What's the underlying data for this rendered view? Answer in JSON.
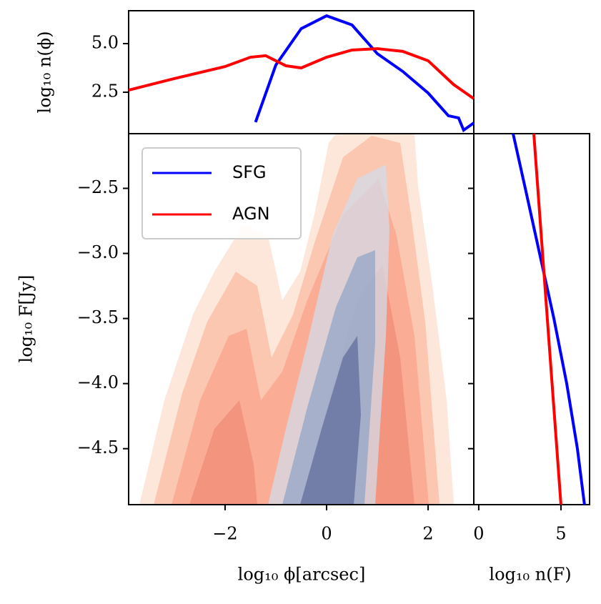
{
  "chart_data": [
    {
      "type": "contour",
      "xlabel": "log₁₀ ϕ[arcsec]",
      "ylabel": "log₁₀ F[Jy]",
      "xlim": [
        -3.9,
        2.9
      ],
      "ylim": [
        -4.93,
        -2.08
      ],
      "xticks": [
        {
          "value": -2,
          "label": "−2"
        },
        0,
        2
      ],
      "yticks": [
        {
          "value": -2.5,
          "label": "−2.5"
        },
        {
          "value": -3.0,
          "label": "−3.0"
        },
        {
          "value": -3.5,
          "label": "−3.5"
        },
        {
          "value": -4.0,
          "label": "−4.0"
        },
        {
          "value": -4.5,
          "label": "−4.5"
        }
      ],
      "legend": "upper left"
    },
    {
      "type": "line",
      "ylabel": "log₁₀ n(ϕ)",
      "xlim": [
        -3.9,
        2.9
      ],
      "ylim": [
        0.37,
        6.69
      ],
      "yticks": [
        2.5,
        {
          "value": 5.0,
          "label": "5.0"
        }
      ],
      "series": [
        {
          "name": "SFG",
          "color": "#0000ff",
          "x": [
            -1.4,
            -1.0,
            -0.5,
            0,
            0.5,
            1.0,
            1.5,
            2.0,
            2.4,
            2.6,
            2.7,
            2.9
          ],
          "values": [
            0.96,
            3.9,
            5.77,
            6.43,
            5.96,
            4.48,
            3.57,
            2.46,
            1.29,
            1.18,
            0.55,
            0.92
          ]
        },
        {
          "name": "AGN",
          "color": "#ff0000",
          "x": [
            -3.9,
            -3.0,
            -2.0,
            -1.5,
            -1.2,
            -0.8,
            -0.5,
            0,
            0.5,
            1.0,
            1.5,
            2.0,
            2.5,
            2.9
          ],
          "values": [
            2.61,
            3.2,
            3.82,
            4.3,
            4.38,
            3.86,
            3.75,
            4.3,
            4.67,
            4.74,
            4.6,
            4.12,
            2.9,
            2.17
          ]
        }
      ]
    },
    {
      "type": "hline",
      "xlabel": "log₁₀ n(F)",
      "xlim": [
        -0.3,
        6.74
      ],
      "ylim": [
        -4.93,
        -2.08
      ],
      "xticks": [
        0,
        5
      ],
      "series": [
        {
          "color": "#0000ff",
          "y": [
            -2.08,
            -2.5,
            -3.0,
            -3.5,
            -4.0,
            -4.5,
            -4.93
          ],
          "values": [
            2.09,
            2.83,
            3.7,
            4.57,
            5.35,
            6.0,
            6.43
          ]
        },
        {
          "color": "#ff0000",
          "y": [
            -2.08,
            -3.5,
            -4.93
          ],
          "values": [
            3.35,
            4.17,
            5.0
          ]
        }
      ]
    }
  ]
}
